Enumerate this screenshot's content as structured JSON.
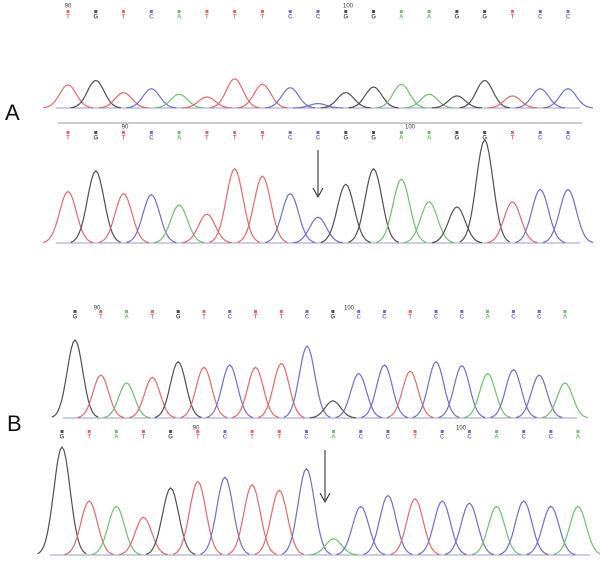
{
  "panels": [
    {
      "label": "A",
      "tracks": [
        {
          "position_labels": [
            "90",
            "100"
          ],
          "bases": [
            "T",
            "G",
            "T",
            "C",
            "A",
            "T",
            "T",
            "T",
            "C",
            "C",
            "G",
            "G",
            "A",
            "A",
            "G",
            "G",
            "T",
            "C",
            "C"
          ],
          "peak_heights": [
            42,
            50,
            28,
            35,
            25,
            20,
            53,
            43,
            37,
            8,
            28,
            38,
            43,
            25,
            22,
            50,
            22,
            35,
            35
          ]
        },
        {
          "position_labels": [
            "90",
            "100"
          ],
          "bases": [
            "T",
            "G",
            "T",
            "C",
            "A",
            "T",
            "T",
            "T",
            "C",
            "C",
            "G",
            "G",
            "A",
            "A",
            "G",
            "G",
            "T",
            "C",
            "C"
          ],
          "peak_heights": [
            50,
            70,
            48,
            47,
            37,
            28,
            72,
            65,
            48,
            25,
            57,
            72,
            62,
            40,
            35,
            100,
            40,
            52,
            52
          ]
        }
      ]
    },
    {
      "label": "B",
      "tracks": [
        {
          "position_labels": [
            "90",
            "100"
          ],
          "bases": [
            "G",
            "T",
            "A",
            "T",
            "G",
            "T",
            "C",
            "T",
            "T",
            "C",
            "G",
            "C",
            "C",
            "T",
            "C",
            "C",
            "A",
            "C",
            "C",
            "A"
          ],
          "peak_heights": [
            100,
            55,
            45,
            52,
            72,
            65,
            68,
            65,
            70,
            92,
            22,
            57,
            68,
            60,
            72,
            67,
            57,
            62,
            55,
            45
          ]
        },
        {
          "position_labels": [
            "90",
            "100"
          ],
          "bases": [
            "G",
            "T",
            "A",
            "T",
            "G",
            "T",
            "C",
            "T",
            "T",
            "C",
            "A",
            "C",
            "C",
            "T",
            "C",
            "C",
            "A",
            "C",
            "C",
            "A"
          ],
          "peak_heights": [
            100,
            50,
            45,
            35,
            62,
            68,
            72,
            65,
            60,
            80,
            15,
            45,
            55,
            52,
            50,
            48,
            45,
            50,
            45,
            45
          ]
        }
      ]
    }
  ]
}
